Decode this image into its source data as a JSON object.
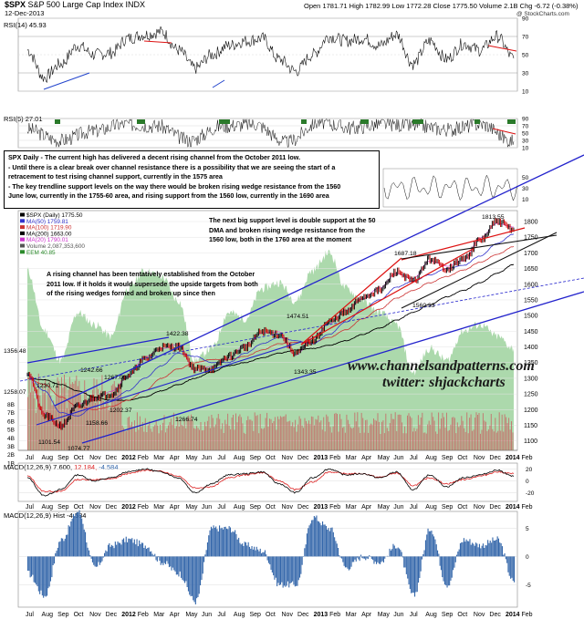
{
  "header": {
    "symbol": "$SPX",
    "name": "S&P 500 Large Cap Index",
    "exchange": "INDX",
    "date": "12-Dec-2013",
    "open_label": "Open",
    "open": "1781.71",
    "high_label": "High",
    "high": "1782.99",
    "low_label": "Low",
    "low": "1772.28",
    "close_label": "Close",
    "close": "1775.50",
    "volume_label": "Volume",
    "volume": "2.1B",
    "chg_label": "Chg",
    "chg": "-6.72 (-0.38%)",
    "brand": "@ StockCharts.com"
  },
  "panels": {
    "rsi14": {
      "label": "RSI(14) 45.93",
      "ticks": [
        "90",
        "70",
        "50",
        "30",
        "10"
      ]
    },
    "rsi5": {
      "label": "RSI(5) 27.01",
      "ticks": [
        "90",
        "70",
        "50",
        "30",
        "10"
      ]
    },
    "price": {
      "legend": [
        {
          "text": "$SPX (Daily) 1775.50",
          "color": "#000000"
        },
        {
          "text": "MA(50) 1759.81",
          "color": "#3333cc"
        },
        {
          "text": "MA(100) 1719.90",
          "color": "#cc3333"
        },
        {
          "text": "MA(200) 1663.00",
          "color": "#000000"
        },
        {
          "text": "MA(20) 1790.01",
          "color": "#cc33cc"
        },
        {
          "text": "Volume 2,087,353,600",
          "color": "#555555"
        },
        {
          "text": "EEM 40.85",
          "color": "#2a8a2a"
        }
      ],
      "yticks": [
        "1800",
        "1750",
        "1700",
        "1650",
        "1600",
        "1550",
        "1500",
        "1450",
        "1400",
        "1350",
        "1300",
        "1250",
        "1200",
        "1150",
        "1100"
      ],
      "vol_ticks": [
        "8B",
        "7B",
        "6B",
        "5B",
        "4B",
        "3B",
        "2B",
        "1B"
      ],
      "labels": [
        "1356.48",
        "1230.71",
        "1258.07",
        "1242.66",
        "1267.06",
        "1202.37",
        "1158.66",
        "1101.54",
        "1074.77",
        "1422.38",
        "1474.51",
        "1266.74",
        "1343.35",
        "1687.18",
        "1560.33",
        "1813.55"
      ]
    },
    "macd": {
      "label": "MACD(12,26,9) 7.600, 12.184, -4.584",
      "label_main": "MACD(12,26,9) 7.600,",
      "label_signal": "12.184,",
      "label_hist": "-4.584",
      "ticks": [
        "20",
        "0",
        "-20"
      ]
    },
    "hist": {
      "label": "MACD(12,26,9) Hist -4.584",
      "ticks": [
        "5",
        "0",
        "-5"
      ]
    }
  },
  "x_axis_labels": [
    "Jul",
    "Aug",
    "Sep",
    "Oct",
    "Nov",
    "Dec",
    "2012",
    "Feb",
    "Mar",
    "Apr",
    "May",
    "Jun",
    "Jul",
    "Aug",
    "Sep",
    "Oct",
    "Nov",
    "Dec",
    "2013",
    "Feb",
    "Mar",
    "Apr",
    "May",
    "Jun",
    "Jul",
    "Aug",
    "Sep",
    "Oct",
    "Nov",
    "Dec",
    "2014",
    "Feb"
  ],
  "notes": {
    "top": [
      "SPX Daily - The current high has delivered a decent rising channel from the October 2011 low.",
      "- Until there is a clear break over channel resistance there is a possibility that we are seeing the start of a",
      "retracement to test rising channel support, currently in the 1575 area",
      "- The key trendline support levels on the way there would be broken rising wedge resistance from the 1560",
      "June low, currently in the 1755-60 area, and rising support from the 1560 low, currently in the 1690 area"
    ],
    "right": [
      "The next big support level is double support at the 50",
      "DMA and broken rising wedge resistance from the",
      "1560 low, both in the 1760 area at the moment"
    ],
    "left": [
      "A rising channel has been tentatively established from the October",
      "2011 low. If it holds it would supersede the upside targets from both",
      "of the rising wedges formed and broken up since then"
    ]
  },
  "watermark": [
    "www.channelsandpatterns.com",
    "twitter: shjackcharts"
  ],
  "colors": {
    "price_up": "#000000",
    "price_down": "#cc0000",
    "ma50": "#3333cc",
    "ma100": "#cc3333",
    "ma200": "#000000",
    "ma20": "#cc33cc",
    "volume": "#c86464",
    "eem": "#9ed29e",
    "channel": "#2222cc",
    "wedge": "#dd1111",
    "macd": "#000000",
    "signal": "#dd2222",
    "hist": "#3366aa",
    "rsi_fill": "#2a7a2a"
  },
  "chart_data": [
    {
      "type": "line",
      "title": "RSI(14) 45.93",
      "ylim": [
        10,
        90
      ],
      "series": [
        {
          "name": "RSI(14)",
          "x": [
            "Jul 2011",
            "Aug 2011",
            "Sep 2011",
            "Oct 2011",
            "Nov 2011",
            "Dec 2011",
            "Jan 2012",
            "Feb 2012",
            "Mar 2012",
            "Apr 2012",
            "May 2012",
            "Jun 2012",
            "Jul 2012",
            "Aug 2012",
            "Sep 2012",
            "Oct 2012",
            "Nov 2012",
            "Dec 2012",
            "Jan 2013",
            "Feb 2013",
            "Mar 2013",
            "Apr 2013",
            "May 2013",
            "Jun 2013",
            "Jul 2013",
            "Aug 2013",
            "Sep 2013",
            "Oct 2013",
            "Nov 2013",
            "Dec 2013"
          ],
          "values": [
            55,
            25,
            40,
            60,
            50,
            52,
            68,
            72,
            75,
            55,
            35,
            50,
            60,
            65,
            68,
            45,
            32,
            50,
            70,
            65,
            68,
            60,
            72,
            40,
            65,
            45,
            62,
            55,
            70,
            46
          ]
        }
      ]
    },
    {
      "type": "line",
      "title": "RSI(5) 27.01",
      "ylim": [
        10,
        90
      ],
      "series": [
        {
          "name": "RSI(5)",
          "x": [
            "Jul 2011",
            "Sep 2011",
            "Nov 2011",
            "Jan 2012",
            "Mar 2012",
            "May 2012",
            "Jul 2012",
            "Sep 2012",
            "Nov 2012",
            "Jan 2013",
            "Mar 2013",
            "May 2013",
            "Jul 2013",
            "Sep 2013",
            "Nov 2013",
            "Dec 2013"
          ],
          "values": [
            60,
            30,
            55,
            75,
            70,
            30,
            70,
            75,
            25,
            80,
            65,
            75,
            70,
            60,
            75,
            27
          ]
        }
      ]
    },
    {
      "type": "line",
      "title": "$SPX (Daily) 1775.50",
      "ylim": [
        1070,
        1835
      ],
      "x": [
        "Jul 2011",
        "Aug 2011",
        "Sep 2011",
        "Oct 2011",
        "Nov 2011",
        "Dec 2011",
        "Jan 2012",
        "Feb 2012",
        "Mar 2012",
        "Apr 2012",
        "May 2012",
        "Jun 2012",
        "Jul 2012",
        "Aug 2012",
        "Sep 2012",
        "Oct 2012",
        "Nov 2012",
        "Dec 2012",
        "Jan 2013",
        "Feb 2013",
        "Mar 2013",
        "Apr 2013",
        "May 2013",
        "Jun 2013",
        "Jul 2013",
        "Aug 2013",
        "Sep 2013",
        "Oct 2013",
        "Nov 2013",
        "Dec 2013"
      ],
      "series": [
        {
          "name": "$SPX",
          "values": [
            1320,
            1180,
            1150,
            1210,
            1240,
            1250,
            1310,
            1360,
            1400,
            1400,
            1330,
            1330,
            1370,
            1400,
            1450,
            1440,
            1380,
            1420,
            1480,
            1510,
            1560,
            1580,
            1640,
            1610,
            1680,
            1650,
            1680,
            1740,
            1800,
            1775
          ]
        },
        {
          "name": "MA(50)",
          "values": [
            1310,
            1260,
            1190,
            1180,
            1210,
            1230,
            1260,
            1300,
            1340,
            1380,
            1370,
            1350,
            1350,
            1380,
            1410,
            1430,
            1420,
            1410,
            1440,
            1480,
            1520,
            1550,
            1590,
            1610,
            1630,
            1650,
            1660,
            1690,
            1730,
            1760
          ]
        },
        {
          "name": "MA(100)",
          "values": [
            1300,
            1280,
            1240,
            1210,
            1200,
            1210,
            1230,
            1260,
            1300,
            1330,
            1350,
            1360,
            1360,
            1370,
            1390,
            1410,
            1415,
            1415,
            1430,
            1455,
            1490,
            1520,
            1555,
            1580,
            1605,
            1625,
            1645,
            1670,
            1695,
            1720
          ]
        },
        {
          "name": "MA(200)",
          "values": [
            1300,
            1295,
            1280,
            1260,
            1240,
            1230,
            1230,
            1240,
            1260,
            1280,
            1300,
            1320,
            1340,
            1350,
            1365,
            1380,
            1390,
            1395,
            1405,
            1420,
            1440,
            1460,
            1485,
            1510,
            1535,
            1560,
            1580,
            1605,
            1635,
            1663
          ]
        }
      ],
      "annotations": [
        {
          "text": "1356.48",
          "x": "Jul 2011",
          "y": 1356.48
        },
        {
          "text": "1230.71",
          "x": "Aug 2011",
          "y": 1230.71
        },
        {
          "text": "1258.07",
          "x": "Jul 2011",
          "y": 1258.07
        },
        {
          "text": "1242.66",
          "x": "Oct 2011",
          "y": 1242.66
        },
        {
          "text": "1267.06",
          "x": "Nov 2011",
          "y": 1267.06
        },
        {
          "text": "1202.37",
          "x": "Dec 2011",
          "y": 1202.37
        },
        {
          "text": "1158.66",
          "x": "Nov 2011",
          "y": 1158.66
        },
        {
          "text": "1101.54",
          "x": "Aug 2011",
          "y": 1101.54
        },
        {
          "text": "1074.77",
          "x": "Oct 2011",
          "y": 1074.77
        },
        {
          "text": "1422.38",
          "x": "Apr 2012",
          "y": 1422.38
        },
        {
          "text": "1474.51",
          "x": "Sep 2012",
          "y": 1474.51
        },
        {
          "text": "1266.74",
          "x": "Jun 2012",
          "y": 1266.74
        },
        {
          "text": "1343.35",
          "x": "Nov 2012",
          "y": 1343.35
        },
        {
          "text": "1687.18",
          "x": "May 2013",
          "y": 1687.18
        },
        {
          "text": "1560.33",
          "x": "Jun 2013",
          "y": 1560.33
        },
        {
          "text": "1813.55",
          "x": "Nov 2013",
          "y": 1813.55
        }
      ]
    },
    {
      "type": "line",
      "title": "MACD(12,26,9) 7.600, 12.184, -4.584",
      "ylim": [
        -35,
        30
      ],
      "series": [
        {
          "name": "MACD",
          "values": [
            5,
            -25,
            -15,
            10,
            0,
            5,
            15,
            20,
            15,
            5,
            -20,
            -5,
            10,
            12,
            15,
            -5,
            -20,
            5,
            20,
            10,
            12,
            5,
            15,
            -15,
            10,
            -10,
            5,
            10,
            18,
            7.6
          ]
        },
        {
          "name": "Signal",
          "values": [
            8,
            -18,
            -18,
            2,
            2,
            3,
            12,
            18,
            16,
            8,
            -12,
            -10,
            5,
            10,
            14,
            0,
            -15,
            -2,
            15,
            12,
            12,
            6,
            13,
            -8,
            5,
            -5,
            2,
            8,
            15,
            12.184
          ]
        }
      ]
    },
    {
      "type": "bar",
      "title": "MACD(12,26,9) Hist -4.584",
      "ylim": [
        -9,
        8
      ],
      "categories": [
        "Jul 2011",
        "Aug 2011",
        "Sep 2011",
        "Oct 2011",
        "Nov 2011",
        "Dec 2011",
        "Jan 2012",
        "Feb 2012",
        "Mar 2012",
        "Apr 2012",
        "May 2012",
        "Jun 2012",
        "Jul 2012",
        "Aug 2012",
        "Sep 2012",
        "Oct 2012",
        "Nov 2012",
        "Dec 2012",
        "Jan 2013",
        "Feb 2013",
        "Mar 2013",
        "Apr 2013",
        "May 2013",
        "Jun 2013",
        "Jul 2013",
        "Aug 2013",
        "Sep 2013",
        "Oct 2013",
        "Nov 2013",
        "Dec 2013"
      ],
      "values": [
        -3,
        -7,
        3,
        8,
        -2,
        2,
        3,
        2,
        -1,
        -3,
        -8,
        5,
        5,
        2,
        1,
        -5,
        -5,
        7,
        5,
        -2,
        0,
        -1,
        2,
        -7,
        5,
        -5,
        3,
        2,
        3,
        -4.584
      ]
    }
  ]
}
